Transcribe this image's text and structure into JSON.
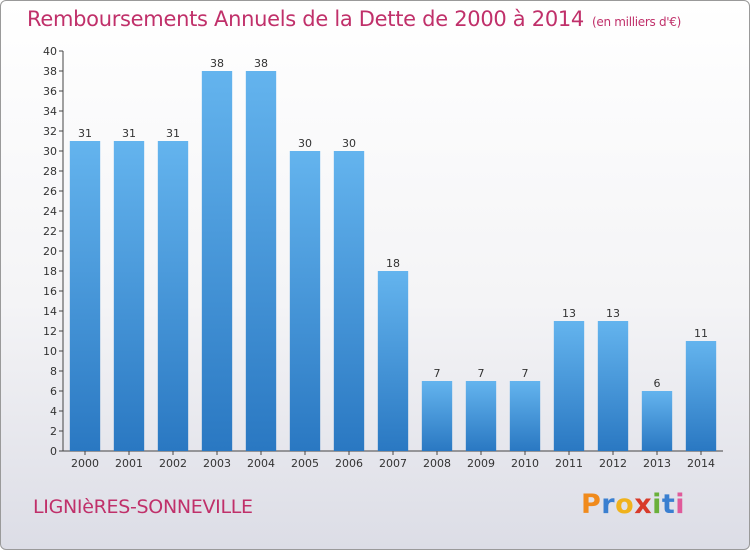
{
  "header": {
    "title": "Remboursements Annuels de la Dette de 2000 à 2014",
    "unit": "(en milliers d'€)"
  },
  "footer": {
    "city": "LIGNIèRES-SONNEVILLE",
    "logo": {
      "text": "Proxiti",
      "letter_colors": [
        "#f08a1c",
        "#3a7fd0",
        "#f0b21c",
        "#d83a2a",
        "#6ab03a",
        "#3a7fd0",
        "#e05a9a"
      ]
    }
  },
  "colors": {
    "bar_light": "#64b4ee",
    "bar_dark": "#2a78c2",
    "accent": "#c0306a"
  },
  "chart_data": {
    "type": "bar",
    "categories": [
      "2000",
      "2001",
      "2002",
      "2003",
      "2004",
      "2005",
      "2006",
      "2007",
      "2008",
      "2009",
      "2010",
      "2011",
      "2012",
      "2013",
      "2014"
    ],
    "values": [
      31,
      31,
      31,
      38,
      38,
      30,
      30,
      18,
      7,
      7,
      7,
      13,
      13,
      6,
      11
    ],
    "data_labels": [
      "31",
      "31",
      "31",
      "38",
      "38",
      "30",
      "30",
      "18",
      "7",
      "7",
      "7",
      "13",
      "13",
      "6",
      "11"
    ],
    "title": "Remboursements Annuels de la Dette de 2000 à 2014",
    "ylim": [
      0,
      40
    ],
    "y_tick_step": 2,
    "grid": false,
    "legend": "none"
  }
}
